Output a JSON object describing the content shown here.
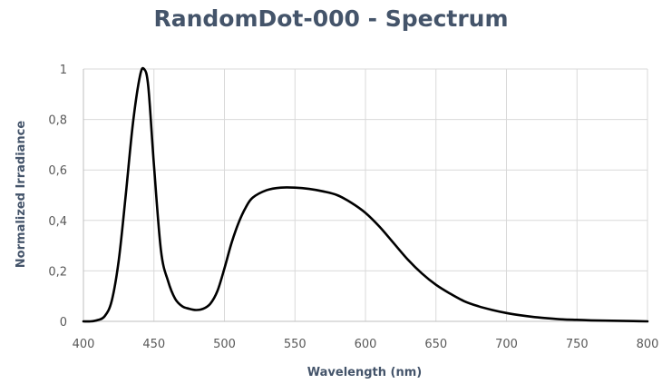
{
  "chart_data": {
    "type": "line",
    "title": "RandomDot-000 - Spectrum",
    "xlabel": "Wavelength (nm)",
    "ylabel": "Normalized Irradiance",
    "xlim": [
      400,
      800
    ],
    "ylim": [
      0,
      1
    ],
    "x_ticks": [
      400,
      450,
      500,
      550,
      600,
      650,
      700,
      750,
      800
    ],
    "y_ticks": [
      0,
      0.2,
      0.4,
      0.6,
      0.8,
      1
    ],
    "y_tick_labels": [
      "0",
      "0,2",
      "0,4",
      "0,6",
      "0,8",
      "1"
    ],
    "grid": true,
    "series": [
      {
        "color": "#000000",
        "x": [
          400,
          405,
          410,
          415,
          420,
          425,
          430,
          435,
          440,
          443,
          446,
          450,
          455,
          460,
          465,
          470,
          475,
          480,
          485,
          490,
          495,
          500,
          505,
          510,
          515,
          520,
          530,
          540,
          550,
          560,
          570,
          580,
          590,
          600,
          610,
          620,
          630,
          640,
          650,
          660,
          670,
          680,
          690,
          700,
          710,
          720,
          730,
          740,
          750,
          760,
          770,
          780,
          790,
          800
        ],
        "y": [
          0.0,
          0.0,
          0.005,
          0.02,
          0.08,
          0.24,
          0.5,
          0.78,
          0.97,
          1.0,
          0.93,
          0.62,
          0.28,
          0.16,
          0.09,
          0.06,
          0.05,
          0.045,
          0.05,
          0.07,
          0.12,
          0.21,
          0.31,
          0.39,
          0.45,
          0.49,
          0.52,
          0.53,
          0.53,
          0.525,
          0.515,
          0.5,
          0.47,
          0.43,
          0.375,
          0.31,
          0.245,
          0.19,
          0.145,
          0.11,
          0.08,
          0.06,
          0.045,
          0.033,
          0.024,
          0.017,
          0.012,
          0.008,
          0.006,
          0.004,
          0.003,
          0.002,
          0.001,
          0.0
        ]
      }
    ]
  }
}
